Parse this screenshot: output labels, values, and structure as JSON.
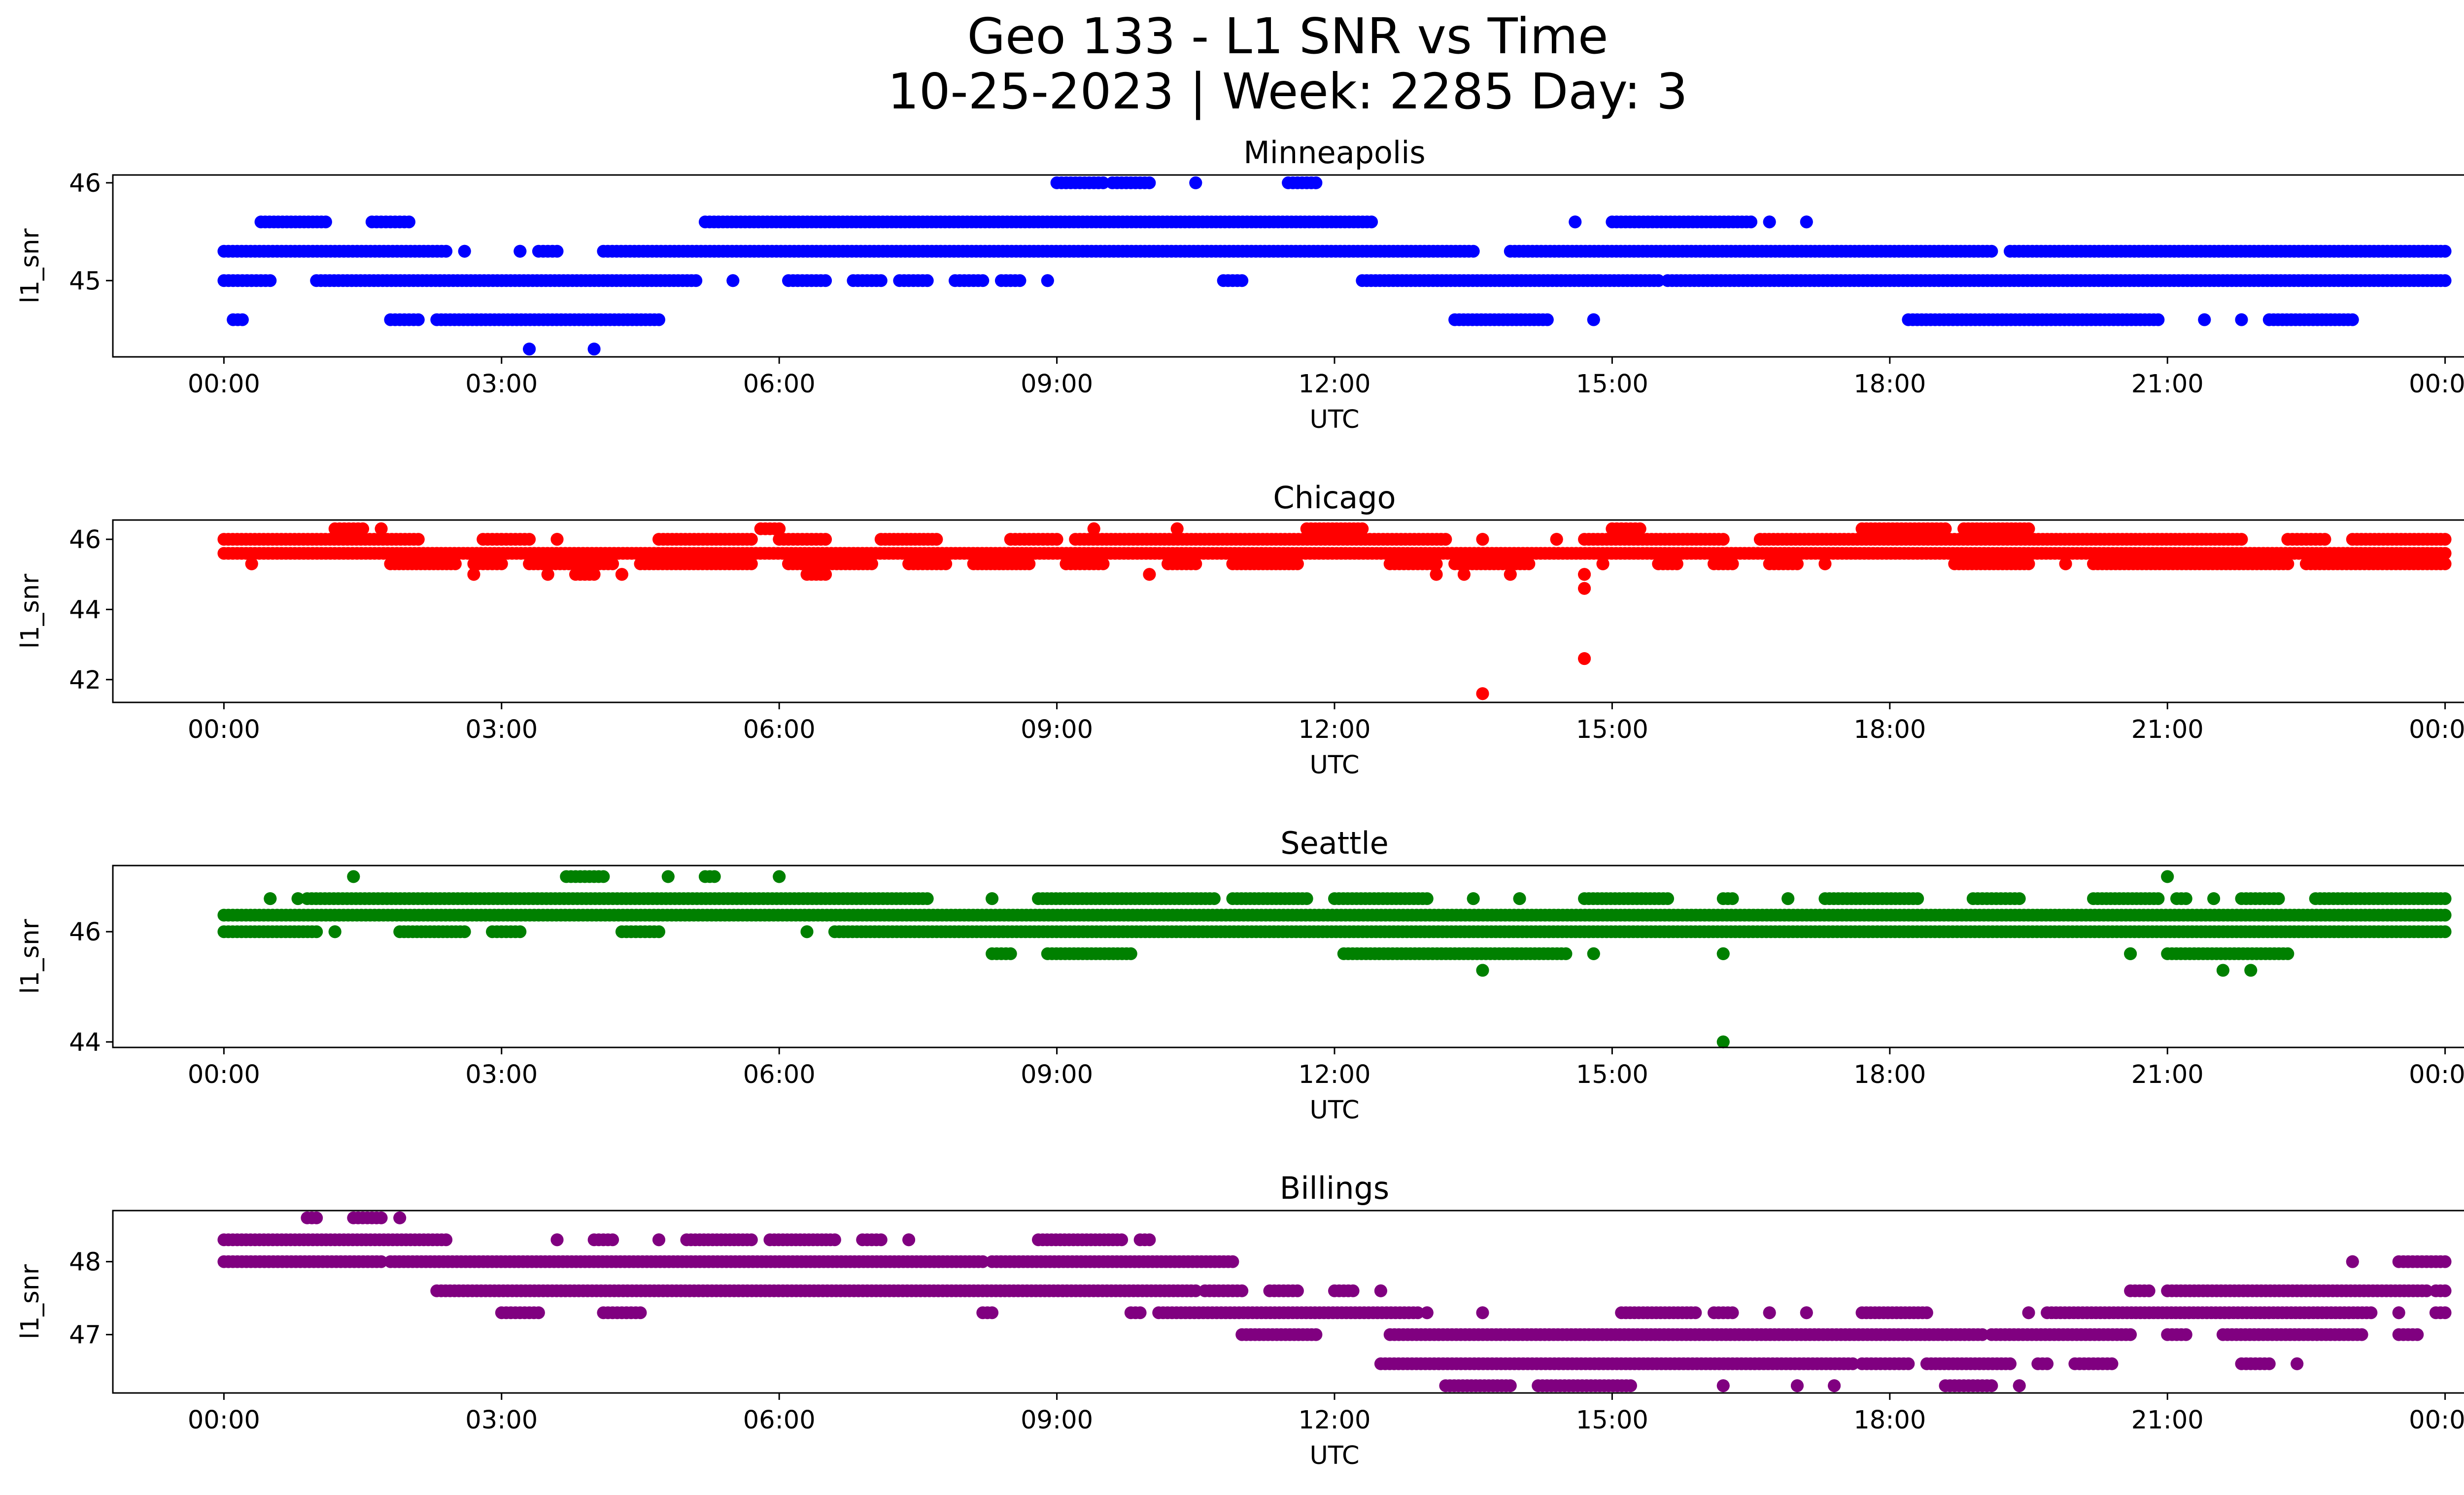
{
  "figure": {
    "title_line1": "Geo 133 - L1 SNR vs Time",
    "title_line2": "10-25-2023 | Week: 2285 Day: 3"
  },
  "chart_data": [
    {
      "type": "scatter",
      "title": "Minneapolis",
      "xlabel": "UTC",
      "ylabel": "l1_snr",
      "color": "#0000ff",
      "x_unit": "hours UTC",
      "xlim": [
        -1.2,
        25.2
      ],
      "xticks": [
        "00:00",
        "03:00",
        "06:00",
        "09:00",
        "12:00",
        "15:00",
        "18:00",
        "21:00",
        "00:00"
      ],
      "ylim": [
        44.22,
        46.08
      ],
      "yticks": [
        45,
        46
      ],
      "levels": [
        {
          "y": 46.0,
          "segments": [
            [
              9.0,
              9.5
            ],
            [
              9.6,
              10.0
            ],
            [
              10.5,
              10.5
            ],
            [
              11.5,
              11.8
            ]
          ]
        },
        {
          "y": 45.6,
          "segments": [
            [
              0.4,
              1.1
            ],
            [
              1.6,
              2.0
            ],
            [
              14.6,
              14.6
            ],
            [
              15.0,
              16.5
            ],
            [
              16.7,
              16.7
            ],
            [
              17.1,
              17.1
            ],
            [
              5.2,
              12.4
            ]
          ]
        },
        {
          "y": 45.3,
          "segments": [
            [
              0.0,
              2.4
            ],
            [
              2.6,
              2.6
            ],
            [
              3.2,
              3.2
            ],
            [
              3.4,
              3.6
            ],
            [
              4.1,
              13.5
            ],
            [
              13.9,
              19.1
            ],
            [
              19.3,
              24.0
            ]
          ]
        },
        {
          "y": 45.0,
          "segments": [
            [
              0.0,
              0.5
            ],
            [
              1.0,
              5.1
            ],
            [
              5.5,
              5.5
            ],
            [
              6.1,
              6.5
            ],
            [
              6.8,
              7.1
            ],
            [
              7.3,
              7.6
            ],
            [
              7.9,
              8.2
            ],
            [
              8.4,
              8.6
            ],
            [
              8.9,
              8.9
            ],
            [
              10.8,
              11.0
            ],
            [
              12.3,
              15.5
            ],
            [
              15.6,
              24.0
            ]
          ]
        },
        {
          "y": 44.6,
          "segments": [
            [
              0.1,
              0.2
            ],
            [
              1.8,
              2.1
            ],
            [
              2.3,
              4.7
            ],
            [
              13.3,
              14.3
            ],
            [
              14.8,
              14.8
            ],
            [
              18.2,
              20.9
            ],
            [
              21.4,
              21.4
            ],
            [
              21.8,
              21.8
            ],
            [
              22.1,
              23.0
            ]
          ]
        },
        {
          "y": 44.3,
          "segments": [
            [
              3.3,
              3.3
            ],
            [
              4.0,
              4.0
            ]
          ]
        }
      ]
    },
    {
      "type": "scatter",
      "title": "Chicago",
      "xlabel": "UTC",
      "ylabel": "l1_snr",
      "color": "#ff0000",
      "x_unit": "hours UTC",
      "xlim": [
        -1.2,
        25.2
      ],
      "xticks": [
        "00:00",
        "03:00",
        "06:00",
        "09:00",
        "12:00",
        "15:00",
        "18:00",
        "21:00",
        "00:00"
      ],
      "ylim": [
        41.35,
        46.55
      ],
      "yticks": [
        42,
        44,
        46
      ],
      "levels": [
        {
          "y": 46.3,
          "segments": [
            [
              1.2,
              1.5
            ],
            [
              1.7,
              1.7
            ],
            [
              5.8,
              6.0
            ],
            [
              9.4,
              9.4
            ],
            [
              10.3,
              10.3
            ],
            [
              11.7,
              12.3
            ],
            [
              15.0,
              15.3
            ],
            [
              17.7,
              18.6
            ],
            [
              18.8,
              19.5
            ]
          ]
        },
        {
          "y": 46.0,
          "segments": [
            [
              0.0,
              2.1
            ],
            [
              2.8,
              3.3
            ],
            [
              3.6,
              3.6
            ],
            [
              4.7,
              5.7
            ],
            [
              6.0,
              6.5
            ],
            [
              7.1,
              7.7
            ],
            [
              8.5,
              9.0
            ],
            [
              9.2,
              13.2
            ],
            [
              13.6,
              13.6
            ],
            [
              14.4,
              14.4
            ],
            [
              14.7,
              16.2
            ],
            [
              16.6,
              21.8
            ],
            [
              22.3,
              22.7
            ],
            [
              23.0,
              24.0
            ]
          ]
        },
        {
          "y": 45.6,
          "segments": [
            [
              0.0,
              24.0
            ]
          ]
        },
        {
          "y": 45.3,
          "segments": [
            [
              0.3,
              0.3
            ],
            [
              1.8,
              2.5
            ],
            [
              2.7,
              3.0
            ],
            [
              3.3,
              4.2
            ],
            [
              4.5,
              5.7
            ],
            [
              6.1,
              7.0
            ],
            [
              7.4,
              7.8
            ],
            [
              8.1,
              8.7
            ],
            [
              9.1,
              9.5
            ],
            [
              10.2,
              10.5
            ],
            [
              10.9,
              11.6
            ],
            [
              12.6,
              13.1
            ],
            [
              13.3,
              14.1
            ],
            [
              14.9,
              14.9
            ],
            [
              15.5,
              15.7
            ],
            [
              16.1,
              16.3
            ],
            [
              16.7,
              17.0
            ],
            [
              17.3,
              17.3
            ],
            [
              18.7,
              19.5
            ],
            [
              19.9,
              19.9
            ],
            [
              20.2,
              22.3
            ],
            [
              22.5,
              24.0
            ]
          ]
        },
        {
          "y": 45.0,
          "segments": [
            [
              2.7,
              2.7
            ],
            [
              3.5,
              3.5
            ],
            [
              3.8,
              4.0
            ],
            [
              4.3,
              4.3
            ],
            [
              6.3,
              6.5
            ],
            [
              10.0,
              10.0
            ],
            [
              13.1,
              13.1
            ],
            [
              13.4,
              13.4
            ],
            [
              13.9,
              13.9
            ],
            [
              14.7,
              14.7
            ]
          ]
        },
        {
          "y": 44.6,
          "segments": [
            [
              14.7,
              14.7
            ]
          ]
        },
        {
          "y": 42.6,
          "segments": [
            [
              14.7,
              14.7
            ]
          ]
        },
        {
          "y": 41.6,
          "segments": [
            [
              13.6,
              13.6
            ]
          ]
        }
      ]
    },
    {
      "type": "scatter",
      "title": "Seattle",
      "xlabel": "UTC",
      "ylabel": "l1_snr",
      "color": "#008000",
      "x_unit": "hours UTC",
      "xlim": [
        -1.2,
        25.2
      ],
      "xticks": [
        "00:00",
        "03:00",
        "06:00",
        "09:00",
        "12:00",
        "15:00",
        "18:00",
        "21:00",
        "00:00"
      ],
      "ylim": [
        43.9,
        47.2
      ],
      "yticks": [
        44,
        46
      ],
      "levels": [
        {
          "y": 47.0,
          "segments": [
            [
              1.4,
              1.4
            ],
            [
              3.7,
              4.1
            ],
            [
              4.8,
              4.8
            ],
            [
              5.2,
              5.3
            ],
            [
              6.0,
              6.0
            ],
            [
              21.0,
              21.0
            ]
          ]
        },
        {
          "y": 46.6,
          "segments": [
            [
              0.5,
              0.5
            ],
            [
              0.8,
              0.8
            ],
            [
              0.9,
              7.6
            ],
            [
              8.3,
              8.3
            ],
            [
              8.8,
              10.7
            ],
            [
              10.9,
              11.7
            ],
            [
              12.0,
              13.0
            ],
            [
              13.5,
              13.5
            ],
            [
              14.0,
              14.0
            ],
            [
              14.7,
              15.6
            ],
            [
              16.2,
              16.3
            ],
            [
              16.9,
              16.9
            ],
            [
              17.3,
              18.3
            ],
            [
              18.9,
              19.4
            ],
            [
              20.2,
              20.9
            ],
            [
              21.1,
              21.2
            ],
            [
              21.5,
              21.5
            ],
            [
              21.8,
              22.2
            ],
            [
              22.6,
              24.0
            ]
          ]
        },
        {
          "y": 46.3,
          "segments": [
            [
              0.0,
              24.0
            ]
          ]
        },
        {
          "y": 46.0,
          "segments": [
            [
              0.0,
              1.0
            ],
            [
              1.2,
              1.2
            ],
            [
              1.9,
              2.6
            ],
            [
              2.9,
              3.2
            ],
            [
              4.3,
              4.7
            ],
            [
              6.3,
              6.3
            ],
            [
              6.6,
              24.0
            ]
          ]
        },
        {
          "y": 45.6,
          "segments": [
            [
              8.3,
              8.5
            ],
            [
              8.9,
              9.8
            ],
            [
              12.1,
              14.5
            ],
            [
              14.8,
              14.8
            ],
            [
              16.2,
              16.2
            ],
            [
              20.6,
              20.6
            ],
            [
              21.0,
              22.3
            ]
          ]
        },
        {
          "y": 45.3,
          "segments": [
            [
              13.6,
              13.6
            ],
            [
              21.6,
              21.6
            ],
            [
              21.9,
              21.9
            ]
          ]
        },
        {
          "y": 44.0,
          "segments": [
            [
              16.2,
              16.2
            ]
          ]
        }
      ]
    },
    {
      "type": "scatter",
      "title": "Billings",
      "xlabel": "UTC",
      "ylabel": "l1_snr",
      "color": "#800080",
      "x_unit": "hours UTC",
      "xlim": [
        -1.2,
        25.2
      ],
      "xticks": [
        "00:00",
        "03:00",
        "06:00",
        "09:00",
        "12:00",
        "15:00",
        "18:00",
        "21:00",
        "00:00"
      ],
      "ylim": [
        46.2,
        48.7
      ],
      "yticks": [
        47,
        48
      ],
      "levels": [
        {
          "y": 48.6,
          "segments": [
            [
              0.9,
              1.0
            ],
            [
              1.4,
              1.7
            ],
            [
              1.9,
              1.9
            ]
          ]
        },
        {
          "y": 48.3,
          "segments": [
            [
              0.0,
              2.4
            ],
            [
              3.6,
              3.6
            ],
            [
              4.0,
              4.2
            ],
            [
              4.7,
              4.7
            ],
            [
              5.0,
              5.7
            ],
            [
              5.9,
              6.6
            ],
            [
              6.9,
              7.1
            ],
            [
              7.4,
              7.4
            ],
            [
              8.8,
              9.7
            ],
            [
              9.9,
              10.0
            ]
          ]
        },
        {
          "y": 48.0,
          "segments": [
            [
              0.0,
              1.7
            ],
            [
              1.8,
              8.2
            ],
            [
              8.3,
              10.9
            ],
            [
              23.0,
              23.0
            ],
            [
              23.5,
              24.0
            ]
          ]
        },
        {
          "y": 47.6,
          "segments": [
            [
              2.3,
              10.5
            ],
            [
              10.6,
              11.0
            ],
            [
              11.3,
              11.6
            ],
            [
              12.0,
              12.2
            ],
            [
              12.5,
              12.5
            ],
            [
              20.6,
              20.8
            ],
            [
              21.0,
              23.8
            ],
            [
              23.9,
              24.0
            ]
          ]
        },
        {
          "y": 47.3,
          "segments": [
            [
              3.0,
              3.4
            ],
            [
              4.1,
              4.5
            ],
            [
              8.2,
              8.3
            ],
            [
              9.8,
              9.9
            ],
            [
              10.1,
              12.9
            ],
            [
              13.0,
              13.0
            ],
            [
              13.6,
              13.6
            ],
            [
              15.1,
              15.9
            ],
            [
              16.1,
              16.3
            ],
            [
              16.7,
              16.7
            ],
            [
              17.1,
              17.1
            ],
            [
              17.7,
              18.4
            ],
            [
              19.5,
              19.5
            ],
            [
              19.7,
              23.2
            ],
            [
              23.5,
              23.5
            ],
            [
              23.9,
              24.0
            ]
          ]
        },
        {
          "y": 47.0,
          "segments": [
            [
              11.0,
              11.8
            ],
            [
              12.6,
              19.0
            ],
            [
              19.1,
              20.6
            ],
            [
              21.0,
              21.2
            ],
            [
              21.6,
              23.1
            ],
            [
              23.5,
              23.7
            ]
          ]
        },
        {
          "y": 46.6,
          "segments": [
            [
              12.5,
              17.6
            ],
            [
              17.7,
              18.2
            ],
            [
              18.4,
              19.3
            ],
            [
              19.6,
              19.7
            ],
            [
              20.0,
              20.4
            ],
            [
              21.8,
              22.1
            ],
            [
              22.4,
              22.4
            ]
          ]
        },
        {
          "y": 46.3,
          "segments": [
            [
              13.2,
              13.9
            ],
            [
              14.2,
              15.2
            ],
            [
              16.2,
              16.2
            ],
            [
              17.0,
              17.0
            ],
            [
              17.4,
              17.4
            ],
            [
              18.6,
              19.1
            ],
            [
              19.4,
              19.4
            ]
          ]
        }
      ]
    }
  ]
}
